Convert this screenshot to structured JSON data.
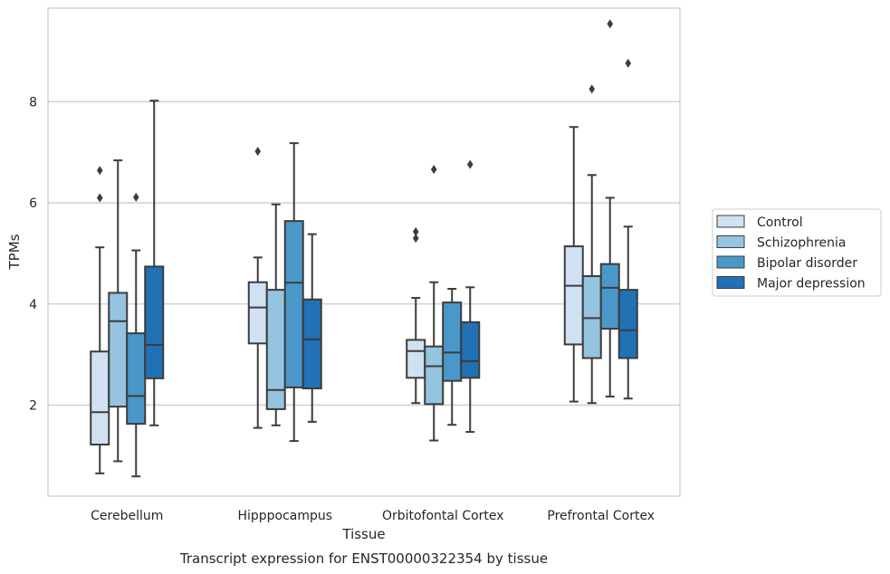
{
  "caption": "Transcript expression for ENST00000322354 by tissue",
  "chart_data": {
    "type": "box",
    "xlabel": "Tissue",
    "ylabel": "TPMs",
    "ylim": [
      0.2,
      9.85
    ],
    "yticks": [
      2,
      4,
      6,
      8
    ],
    "grid": "horizontal",
    "legend_position": "right",
    "categories": [
      "Cerebellum",
      "Hipppocampus",
      "Orbitofontal Cortex",
      "Prefrontal Cortex"
    ],
    "series": [
      {
        "name": "Control",
        "color": "#d0e1f2",
        "boxes": [
          {
            "whislo": 0.65,
            "q1": 1.22,
            "med": 1.86,
            "q3": 3.06,
            "whishi": 5.12,
            "fliers": [
              6.1,
              6.64
            ]
          },
          {
            "whislo": 1.55,
            "q1": 3.22,
            "med": 3.93,
            "q3": 4.43,
            "whishi": 4.92,
            "fliers": [
              7.02
            ]
          },
          {
            "whislo": 2.04,
            "q1": 2.54,
            "med": 3.07,
            "q3": 3.29,
            "whishi": 4.12,
            "fliers": [
              5.3,
              5.43
            ]
          },
          {
            "whislo": 2.07,
            "q1": 3.2,
            "med": 4.36,
            "q3": 5.14,
            "whishi": 7.5,
            "fliers": []
          }
        ]
      },
      {
        "name": "Schizophrenia",
        "color": "#94c4df",
        "boxes": [
          {
            "whislo": 0.89,
            "q1": 1.97,
            "med": 3.66,
            "q3": 4.22,
            "whishi": 6.84,
            "fliers": []
          },
          {
            "whislo": 1.6,
            "q1": 1.92,
            "med": 2.3,
            "q3": 4.28,
            "whishi": 5.97,
            "fliers": []
          },
          {
            "whislo": 1.3,
            "q1": 2.02,
            "med": 2.77,
            "q3": 3.16,
            "whishi": 4.43,
            "fliers": [
              6.66
            ]
          },
          {
            "whislo": 2.04,
            "q1": 2.93,
            "med": 3.72,
            "q3": 4.55,
            "whishi": 6.55,
            "fliers": [
              8.25
            ]
          }
        ]
      },
      {
        "name": "Bipolar disorder",
        "color": "#4a98c9",
        "boxes": [
          {
            "whislo": 0.59,
            "q1": 1.63,
            "med": 2.18,
            "q3": 3.42,
            "whishi": 5.06,
            "fliers": [
              6.11
            ]
          },
          {
            "whislo": 1.29,
            "q1": 2.35,
            "med": 4.42,
            "q3": 5.64,
            "whishi": 7.18,
            "fliers": []
          },
          {
            "whislo": 1.61,
            "q1": 2.48,
            "med": 3.04,
            "q3": 4.03,
            "whishi": 4.3,
            "fliers": []
          },
          {
            "whislo": 2.17,
            "q1": 3.51,
            "med": 4.32,
            "q3": 4.79,
            "whishi": 6.1,
            "fliers": [
              9.54
            ]
          }
        ]
      },
      {
        "name": "Major depression",
        "color": "#2171b5",
        "boxes": [
          {
            "whislo": 1.6,
            "q1": 2.53,
            "med": 3.19,
            "q3": 4.74,
            "whishi": 8.02,
            "fliers": []
          },
          {
            "whislo": 1.67,
            "q1": 2.33,
            "med": 3.3,
            "q3": 4.09,
            "whishi": 5.38,
            "fliers": []
          },
          {
            "whislo": 1.47,
            "q1": 2.54,
            "med": 2.87,
            "q3": 3.64,
            "whishi": 4.33,
            "fliers": [
              6.76
            ]
          },
          {
            "whislo": 2.13,
            "q1": 2.93,
            "med": 3.48,
            "q3": 4.28,
            "whishi": 5.53,
            "fliers": [
              8.76
            ]
          }
        ]
      }
    ]
  }
}
